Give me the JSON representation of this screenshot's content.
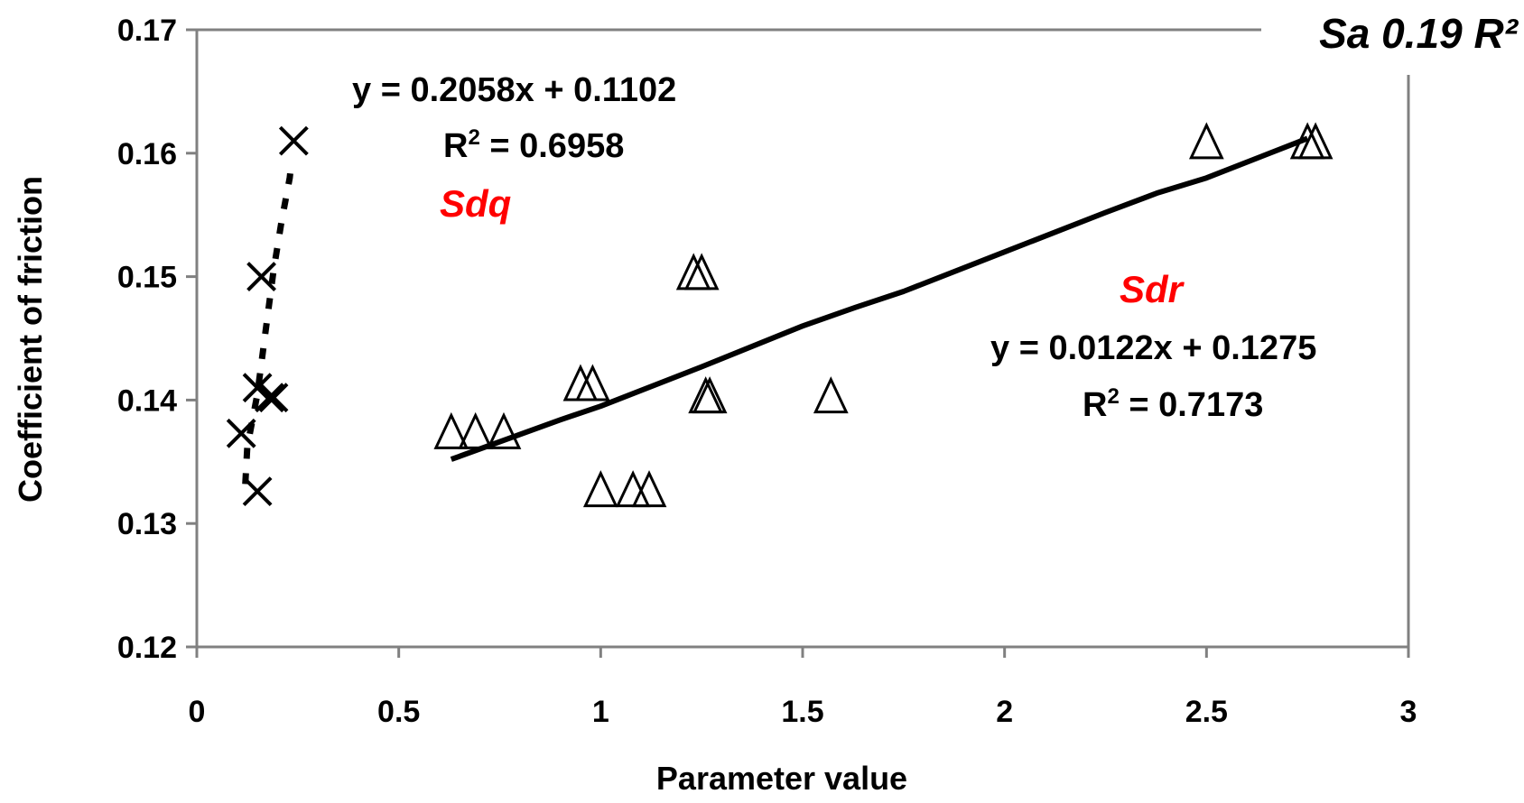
{
  "chart_data": {
    "type": "scatter",
    "xlabel": "Parameter value",
    "ylabel": "Coefficient of friction",
    "xlim": [
      0,
      3
    ],
    "ylim": [
      0.12,
      0.17
    ],
    "x_ticks": [
      "0",
      "0.5",
      "1",
      "1.5",
      "2",
      "2.5",
      "3"
    ],
    "y_ticks": [
      "0.12",
      "0.13",
      "0.14",
      "0.15",
      "0.16",
      "0.17"
    ],
    "grid": false,
    "series": [
      {
        "name": "Sdq",
        "marker": "x",
        "color": "#000000",
        "points": [
          {
            "x": 0.24,
            "y": 0.161
          },
          {
            "x": 0.16,
            "y": 0.15
          },
          {
            "x": 0.15,
            "y": 0.141
          },
          {
            "x": 0.19,
            "y": 0.1402
          },
          {
            "x": 0.18,
            "y": 0.1402
          },
          {
            "x": 0.11,
            "y": 0.1373
          },
          {
            "x": 0.15,
            "y": 0.1326
          }
        ],
        "trendline": {
          "style": "dashed",
          "equation": "y = 0.2058x + 0.1102",
          "r2_prefix": "R",
          "r2_sup": "2",
          "r2_value": " = 0.6958",
          "points": [
            {
              "x": 0.12,
              "y": 0.1332
            },
            {
              "x": 0.125,
              "y": 0.1362
            },
            {
              "x": 0.15,
              "y": 0.1405
            },
            {
              "x": 0.17,
              "y": 0.1455
            },
            {
              "x": 0.19,
              "y": 0.1505
            },
            {
              "x": 0.21,
              "y": 0.1545
            },
            {
              "x": 0.23,
              "y": 0.158
            },
            {
              "x": 0.235,
              "y": 0.1595
            }
          ]
        }
      },
      {
        "name": "Sdr",
        "marker": "triangle",
        "color": "#000000",
        "points": [
          {
            "x": 2.5,
            "y": 0.1608
          },
          {
            "x": 2.75,
            "y": 0.1608
          },
          {
            "x": 2.77,
            "y": 0.1608
          },
          {
            "x": 1.23,
            "y": 0.1502
          },
          {
            "x": 1.25,
            "y": 0.1502
          },
          {
            "x": 0.95,
            "y": 0.1412
          },
          {
            "x": 0.98,
            "y": 0.1412
          },
          {
            "x": 1.26,
            "y": 0.1402
          },
          {
            "x": 1.27,
            "y": 0.1402
          },
          {
            "x": 1.57,
            "y": 0.1402
          },
          {
            "x": 0.63,
            "y": 0.1373
          },
          {
            "x": 0.69,
            "y": 0.1373
          },
          {
            "x": 0.76,
            "y": 0.1373
          },
          {
            "x": 1.0,
            "y": 0.1326
          },
          {
            "x": 1.08,
            "y": 0.1326
          },
          {
            "x": 1.12,
            "y": 0.1326
          }
        ],
        "trendline": {
          "style": "solid",
          "equation": "y = 0.0122x + 0.1275",
          "r2_prefix": "R",
          "r2_sup": "2",
          "r2_value": " = 0.7173",
          "points": [
            {
              "x": 0.63,
              "y": 0.1352
            },
            {
              "x": 0.9,
              "y": 0.1384
            },
            {
              "x": 1.0,
              "y": 0.1395
            },
            {
              "x": 1.25,
              "y": 0.1427
            },
            {
              "x": 1.5,
              "y": 0.146
            },
            {
              "x": 1.63,
              "y": 0.1475
            },
            {
              "x": 1.75,
              "y": 0.1488
            },
            {
              "x": 2.0,
              "y": 0.152
            },
            {
              "x": 2.25,
              "y": 0.1552
            },
            {
              "x": 2.38,
              "y": 0.1568
            },
            {
              "x": 2.5,
              "y": 0.158
            },
            {
              "x": 2.75,
              "y": 0.1612
            }
          ]
        }
      }
    ],
    "corner_label": "Sa 0.19 R²"
  }
}
